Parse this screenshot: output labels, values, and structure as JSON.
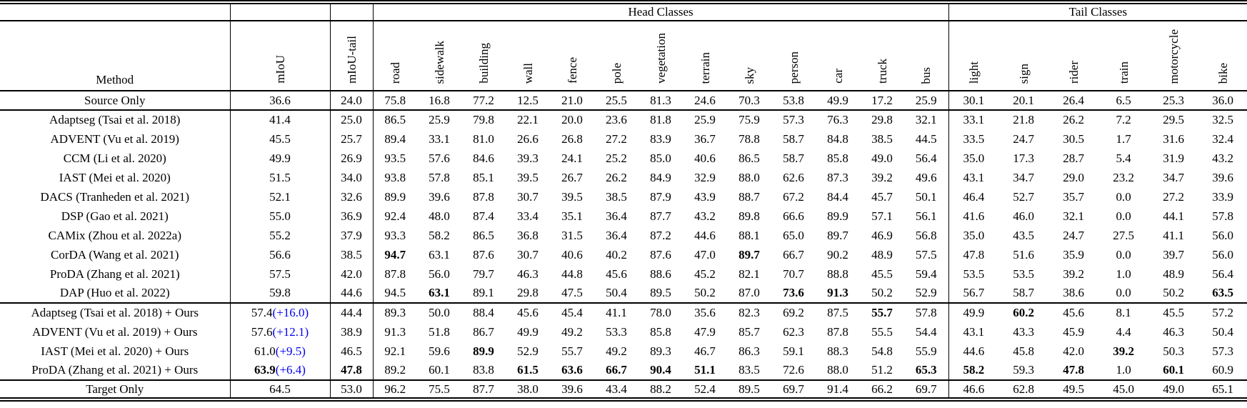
{
  "colors": {
    "delta_blue": "#0000EE",
    "text": "#000000",
    "rule": "#000000",
    "background": "#ffffff"
  },
  "chart_data": {
    "type": "table",
    "group_headers": {
      "head": "Head Classes",
      "tail": "Tail Classes"
    },
    "method_header": "Method",
    "summary_columns": [
      "mIoU",
      "mIoU-tail"
    ],
    "head_columns": [
      "road",
      "sidewalk",
      "building",
      "wall",
      "fence",
      "pole",
      "vegetation",
      "terrain",
      "sky",
      "person",
      "car",
      "truck",
      "bus"
    ],
    "tail_columns": [
      "light",
      "sign",
      "rider",
      "train",
      "motorcycle",
      "bike"
    ],
    "rows": [
      {
        "method": "Source Only",
        "miou": "36.6",
        "miou_delta": "",
        "miou_bold": false,
        "miou_tail": "24.0",
        "miou_tail_bold": false,
        "head": [
          "75.8",
          "16.8",
          "77.2",
          "12.5",
          "21.0",
          "25.5",
          "81.3",
          "24.6",
          "70.3",
          "53.8",
          "49.9",
          "17.2",
          "25.9"
        ],
        "head_bold": [],
        "tail": [
          "30.1",
          "20.1",
          "26.4",
          "6.5",
          "25.3",
          "36.0"
        ],
        "tail_bold": [],
        "rule_after": true
      },
      {
        "method": "Adaptseg (Tsai et al. 2018)",
        "miou": "41.4",
        "miou_delta": "",
        "miou_bold": false,
        "miou_tail": "25.0",
        "miou_tail_bold": false,
        "head": [
          "86.5",
          "25.9",
          "79.8",
          "22.1",
          "20.0",
          "23.6",
          "81.8",
          "25.9",
          "75.9",
          "57.3",
          "76.3",
          "29.8",
          "32.1"
        ],
        "head_bold": [],
        "tail": [
          "33.1",
          "21.8",
          "26.2",
          "7.2",
          "29.5",
          "32.5"
        ],
        "tail_bold": [],
        "rule_after": false
      },
      {
        "method": "ADVENT (Vu et al. 2019)",
        "miou": "45.5",
        "miou_delta": "",
        "miou_bold": false,
        "miou_tail": "25.7",
        "miou_tail_bold": false,
        "head": [
          "89.4",
          "33.1",
          "81.0",
          "26.6",
          "26.8",
          "27.2",
          "83.9",
          "36.7",
          "78.8",
          "58.7",
          "84.8",
          "38.5",
          "44.5"
        ],
        "head_bold": [],
        "tail": [
          "33.5",
          "24.7",
          "30.5",
          "1.7",
          "31.6",
          "32.4"
        ],
        "tail_bold": [],
        "rule_after": false
      },
      {
        "method": "CCM (Li et al. 2020)",
        "miou": "49.9",
        "miou_delta": "",
        "miou_bold": false,
        "miou_tail": "26.9",
        "miou_tail_bold": false,
        "head": [
          "93.5",
          "57.6",
          "84.6",
          "39.3",
          "24.1",
          "25.2",
          "85.0",
          "40.6",
          "86.5",
          "58.7",
          "85.8",
          "49.0",
          "56.4"
        ],
        "head_bold": [],
        "tail": [
          "35.0",
          "17.3",
          "28.7",
          "5.4",
          "31.9",
          "43.2"
        ],
        "tail_bold": [],
        "rule_after": false
      },
      {
        "method": "IAST (Mei et al. 2020)",
        "miou": "51.5",
        "miou_delta": "",
        "miou_bold": false,
        "miou_tail": "34.0",
        "miou_tail_bold": false,
        "head": [
          "93.8",
          "57.8",
          "85.1",
          "39.5",
          "26.7",
          "26.2",
          "84.9",
          "32.9",
          "88.0",
          "62.6",
          "87.3",
          "39.2",
          "49.6"
        ],
        "head_bold": [],
        "tail": [
          "43.1",
          "34.7",
          "29.0",
          "23.2",
          "34.7",
          "39.6"
        ],
        "tail_bold": [],
        "rule_after": false
      },
      {
        "method": "DACS (Tranheden et al. 2021)",
        "miou": "52.1",
        "miou_delta": "",
        "miou_bold": false,
        "miou_tail": "32.6",
        "miou_tail_bold": false,
        "head": [
          "89.9",
          "39.6",
          "87.8",
          "30.7",
          "39.5",
          "38.5",
          "87.9",
          "43.9",
          "88.7",
          "67.2",
          "84.4",
          "45.7",
          "50.1"
        ],
        "head_bold": [],
        "tail": [
          "46.4",
          "52.7",
          "35.7",
          "0.0",
          "27.2",
          "33.9"
        ],
        "tail_bold": [],
        "rule_after": false
      },
      {
        "method": "DSP (Gao et al. 2021)",
        "miou": "55.0",
        "miou_delta": "",
        "miou_bold": false,
        "miou_tail": "36.9",
        "miou_tail_bold": false,
        "head": [
          "92.4",
          "48.0",
          "87.4",
          "33.4",
          "35.1",
          "36.4",
          "87.7",
          "43.2",
          "89.8",
          "66.6",
          "89.9",
          "57.1",
          "56.1"
        ],
        "head_bold": [],
        "tail": [
          "41.6",
          "46.0",
          "32.1",
          "0.0",
          "44.1",
          "57.8"
        ],
        "tail_bold": [],
        "rule_after": false
      },
      {
        "method": "CAMix (Zhou et al. 2022a)",
        "miou": "55.2",
        "miou_delta": "",
        "miou_bold": false,
        "miou_tail": "37.9",
        "miou_tail_bold": false,
        "head": [
          "93.3",
          "58.2",
          "86.5",
          "36.8",
          "31.5",
          "36.4",
          "87.2",
          "44.6",
          "88.1",
          "65.0",
          "89.7",
          "46.9",
          "56.8"
        ],
        "head_bold": [],
        "tail": [
          "35.0",
          "43.5",
          "24.7",
          "27.5",
          "41.1",
          "56.0"
        ],
        "tail_bold": [],
        "rule_after": false
      },
      {
        "method": "CorDA (Wang et al. 2021)",
        "miou": "56.6",
        "miou_delta": "",
        "miou_bold": false,
        "miou_tail": "38.5",
        "miou_tail_bold": false,
        "head": [
          "94.7",
          "63.1",
          "87.6",
          "30.7",
          "40.6",
          "40.2",
          "87.6",
          "47.0",
          "89.7",
          "66.7",
          "90.2",
          "48.9",
          "57.5"
        ],
        "head_bold": [
          0,
          8
        ],
        "tail": [
          "47.8",
          "51.6",
          "35.9",
          "0.0",
          "39.7",
          "56.0"
        ],
        "tail_bold": [],
        "rule_after": false
      },
      {
        "method": "ProDA (Zhang et al. 2021)",
        "miou": "57.5",
        "miou_delta": "",
        "miou_bold": false,
        "miou_tail": "42.0",
        "miou_tail_bold": false,
        "head": [
          "87.8",
          "56.0",
          "79.7",
          "46.3",
          "44.8",
          "45.6",
          "88.6",
          "45.2",
          "82.1",
          "70.7",
          "88.8",
          "45.5",
          "59.4"
        ],
        "head_bold": [],
        "tail": [
          "53.5",
          "53.5",
          "39.2",
          "1.0",
          "48.9",
          "56.4"
        ],
        "tail_bold": [],
        "rule_after": false
      },
      {
        "method": "DAP (Huo et al. 2022)",
        "miou": "59.8",
        "miou_delta": "",
        "miou_bold": false,
        "miou_tail": "44.6",
        "miou_tail_bold": false,
        "head": [
          "94.5",
          "63.1",
          "89.1",
          "29.8",
          "47.5",
          "50.4",
          "89.5",
          "50.2",
          "87.0",
          "73.6",
          "91.3",
          "50.2",
          "52.9"
        ],
        "head_bold": [
          1,
          9,
          10
        ],
        "tail": [
          "56.7",
          "58.7",
          "38.6",
          "0.0",
          "50.2",
          "63.5"
        ],
        "tail_bold": [
          5
        ],
        "rule_after": true
      },
      {
        "method": "Adaptseg (Tsai et al. 2018) + Ours",
        "miou": "57.4",
        "miou_delta": "(+16.0)",
        "miou_bold": false,
        "miou_tail": "44.4",
        "miou_tail_bold": false,
        "head": [
          "89.3",
          "50.0",
          "88.4",
          "45.6",
          "45.4",
          "41.1",
          "78.0",
          "35.6",
          "82.3",
          "69.2",
          "87.5",
          "55.7",
          "57.8"
        ],
        "head_bold": [
          11
        ],
        "tail": [
          "49.9",
          "60.2",
          "45.6",
          "8.1",
          "45.5",
          "57.2"
        ],
        "tail_bold": [
          1
        ],
        "rule_after": false
      },
      {
        "method": "ADVENT (Vu et al. 2019) + Ours",
        "miou": "57.6",
        "miou_delta": "(+12.1)",
        "miou_bold": false,
        "miou_tail": "38.9",
        "miou_tail_bold": false,
        "head": [
          "91.3",
          "51.8",
          "86.7",
          "49.9",
          "49.2",
          "53.3",
          "85.8",
          "47.9",
          "85.7",
          "62.3",
          "87.8",
          "55.5",
          "54.4"
        ],
        "head_bold": [],
        "tail": [
          "43.1",
          "43.3",
          "45.9",
          "4.4",
          "46.3",
          "50.4"
        ],
        "tail_bold": [],
        "rule_after": false
      },
      {
        "method": "IAST (Mei et al. 2020) + Ours",
        "miou": "61.0",
        "miou_delta": "(+9.5)",
        "miou_bold": false,
        "miou_tail": "46.5",
        "miou_tail_bold": false,
        "head": [
          "92.1",
          "59.6",
          "89.9",
          "52.9",
          "55.7",
          "49.2",
          "89.3",
          "46.7",
          "86.3",
          "59.1",
          "88.3",
          "54.8",
          "55.9"
        ],
        "head_bold": [
          2
        ],
        "tail": [
          "44.6",
          "45.8",
          "42.0",
          "39.2",
          "50.3",
          "57.3"
        ],
        "tail_bold": [
          3
        ],
        "rule_after": false
      },
      {
        "method": "ProDA (Zhang et al. 2021) + Ours",
        "miou": "63.9",
        "miou_delta": "(+6.4)",
        "miou_bold": true,
        "miou_tail": "47.8",
        "miou_tail_bold": true,
        "head": [
          "89.2",
          "60.1",
          "83.8",
          "61.5",
          "63.6",
          "66.7",
          "90.4",
          "51.1",
          "83.5",
          "72.6",
          "88.0",
          "51.2",
          "65.3"
        ],
        "head_bold": [
          3,
          4,
          5,
          6,
          7,
          12
        ],
        "tail": [
          "58.2",
          "59.3",
          "47.8",
          "1.0",
          "60.1",
          "60.9"
        ],
        "tail_bold": [
          0,
          2,
          4
        ],
        "rule_after": true
      },
      {
        "method": "Target Only",
        "miou": "64.5",
        "miou_delta": "",
        "miou_bold": false,
        "miou_tail": "53.0",
        "miou_tail_bold": false,
        "head": [
          "96.2",
          "75.5",
          "87.7",
          "38.0",
          "39.6",
          "43.4",
          "88.2",
          "52.4",
          "89.5",
          "69.7",
          "91.4",
          "66.2",
          "69.7"
        ],
        "head_bold": [],
        "tail": [
          "46.6",
          "62.8",
          "49.5",
          "45.0",
          "49.0",
          "65.1"
        ],
        "tail_bold": [],
        "rule_after": false
      }
    ]
  }
}
